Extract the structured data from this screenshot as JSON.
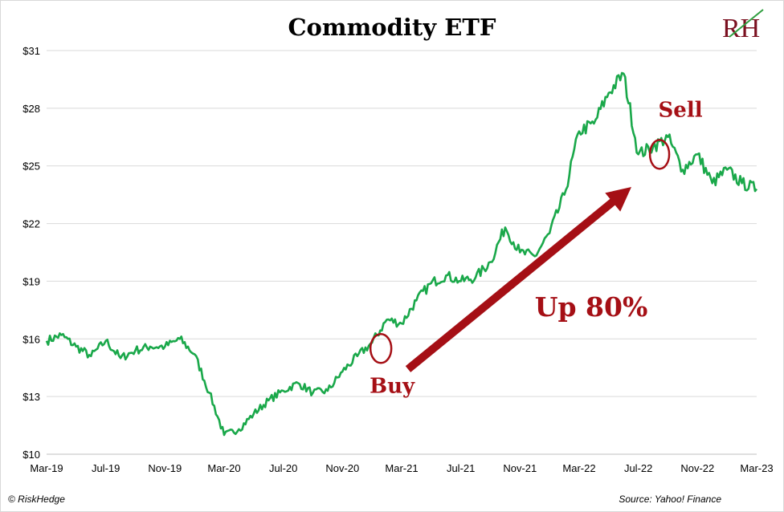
{
  "chart_data": {
    "type": "line",
    "title": "Commodity ETF",
    "xlabel": "",
    "ylabel": "",
    "ylim": [
      10,
      31
    ],
    "yticks": [
      "$10",
      "$13",
      "$16",
      "$19",
      "$22",
      "$25",
      "$28",
      "$31"
    ],
    "ytick_values": [
      10,
      13,
      16,
      19,
      22,
      25,
      28,
      31
    ],
    "xticks": [
      "Mar-19",
      "Jul-19",
      "Nov-19",
      "Mar-20",
      "Jul-20",
      "Nov-20",
      "Mar-21",
      "Jul-21",
      "Nov-21",
      "Mar-22",
      "Jul-22",
      "Nov-22",
      "Mar-23"
    ],
    "grid": "horizontal",
    "series": [
      {
        "color": "#1aa84a",
        "x": [
          "2019-03",
          "2019-04",
          "2019-05",
          "2019-06",
          "2019-07",
          "2019-08",
          "2019-09",
          "2019-10",
          "2019-11",
          "2019-12",
          "2020-01",
          "2020-02",
          "2020-03",
          "2020-04",
          "2020-05",
          "2020-06",
          "2020-07",
          "2020-08",
          "2020-09",
          "2020-10",
          "2020-11",
          "2020-12",
          "2021-01",
          "2021-02",
          "2021-03",
          "2021-04",
          "2021-05",
          "2021-06",
          "2021-07",
          "2021-08",
          "2021-09",
          "2021-10",
          "2021-11",
          "2021-12",
          "2022-01",
          "2022-02",
          "2022-03",
          "2022-04",
          "2022-05",
          "2022-06",
          "2022-07",
          "2022-08",
          "2022-09",
          "2022-10",
          "2022-11",
          "2022-12",
          "2023-01",
          "2023-02",
          "2023-03"
        ],
        "y": [
          15.9,
          16.2,
          15.6,
          15.1,
          15.9,
          15.0,
          15.4,
          15.6,
          15.6,
          16.0,
          15.2,
          13.2,
          11.0,
          11.3,
          12.1,
          12.8,
          13.3,
          13.7,
          13.2,
          13.3,
          14.3,
          15.1,
          15.8,
          17.0,
          16.8,
          18.0,
          18.9,
          19.3,
          19.0,
          19.2,
          20.0,
          21.8,
          20.5,
          20.3,
          21.5,
          23.5,
          26.8,
          27.2,
          28.8,
          29.8,
          25.6,
          26.0,
          26.5,
          24.8,
          25.6,
          24.1,
          24.8,
          24.1,
          23.8
        ]
      }
    ],
    "annotations": [
      {
        "text": "Buy",
        "x": "2021-01",
        "y": 15.5
      },
      {
        "text": "Sell",
        "x": "2022-08",
        "y": 25.6
      },
      {
        "text": "Up 80%"
      }
    ],
    "annotation_color": "#a50f15"
  },
  "footer": {
    "left": "© RiskHedge",
    "right": "Source: Yahoo! Finance"
  },
  "logo": {
    "text": "RH"
  }
}
